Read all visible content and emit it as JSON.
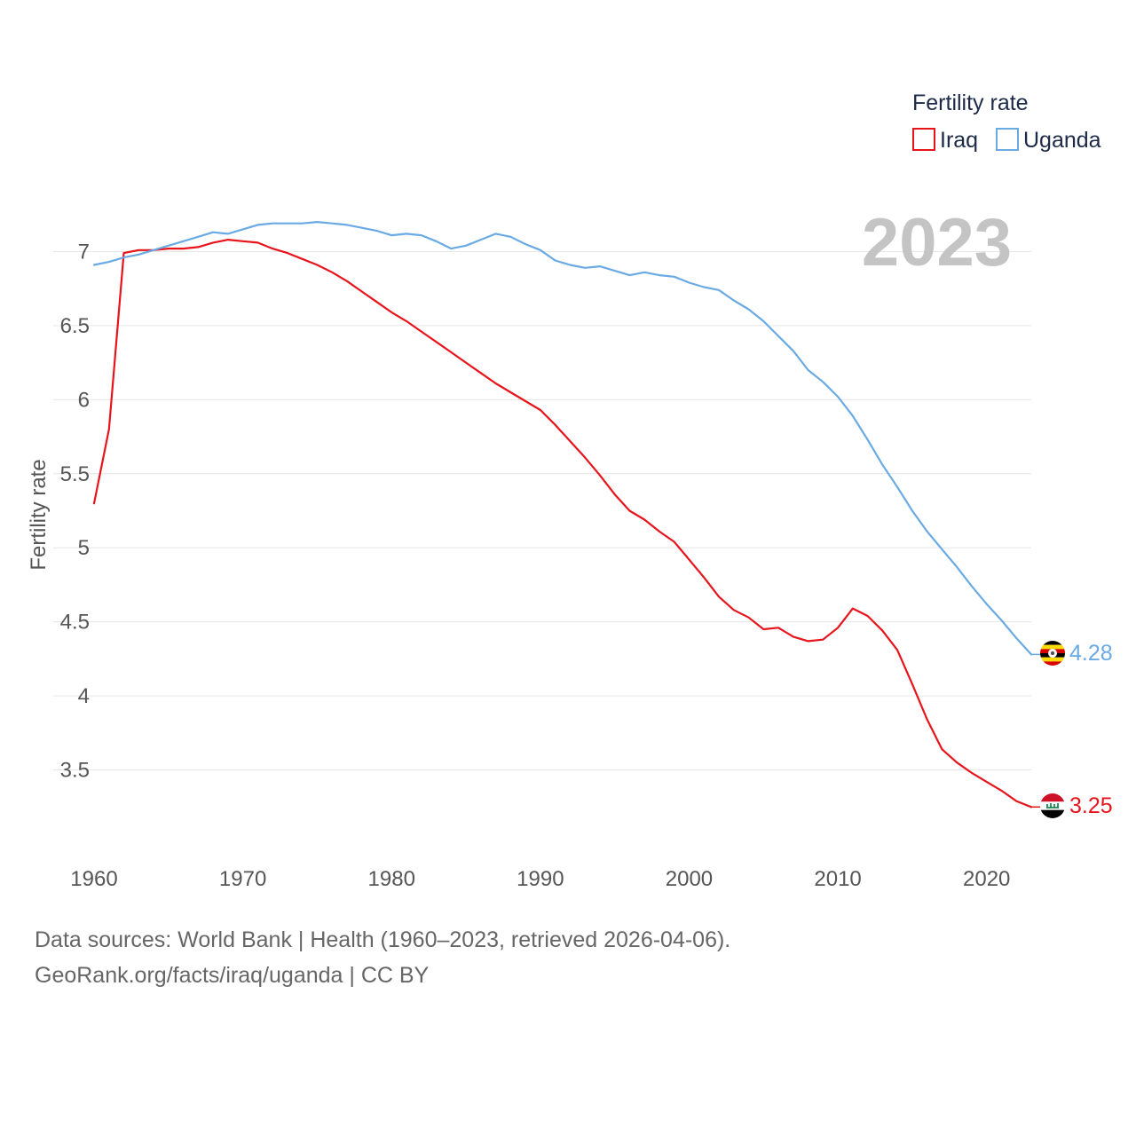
{
  "chart_data": {
    "type": "line",
    "title": "",
    "xlabel": "",
    "ylabel": "Fertility rate",
    "xlim": [
      1960,
      2023
    ],
    "ylim": [
      3.0,
      7.5
    ],
    "xticks": [
      1960,
      1970,
      1980,
      1990,
      2000,
      2010,
      2020
    ],
    "yticks": [
      3.5,
      4,
      4.5,
      5,
      5.5,
      6,
      6.5,
      7
    ],
    "ytick_labels": [
      "3.5",
      "4",
      "4.5",
      "5",
      "5.5",
      "6",
      "6.5",
      "7"
    ],
    "grid": true,
    "legend_title": "Fertility rate",
    "legend_position": "top-right",
    "year_label": "2023",
    "x": [
      1960,
      1961,
      1962,
      1963,
      1964,
      1965,
      1966,
      1967,
      1968,
      1969,
      1970,
      1971,
      1972,
      1973,
      1974,
      1975,
      1976,
      1977,
      1978,
      1979,
      1980,
      1981,
      1982,
      1983,
      1984,
      1985,
      1986,
      1987,
      1988,
      1989,
      1990,
      1991,
      1992,
      1993,
      1994,
      1995,
      1996,
      1997,
      1998,
      1999,
      2000,
      2001,
      2002,
      2003,
      2004,
      2005,
      2006,
      2007,
      2008,
      2009,
      2010,
      2011,
      2012,
      2013,
      2014,
      2015,
      2016,
      2017,
      2018,
      2019,
      2020,
      2021,
      2022,
      2023
    ],
    "series": [
      {
        "name": "Iraq",
        "color": "#e8141c",
        "end_label": "3.25",
        "values": [
          5.3,
          5.8,
          6.99,
          7.01,
          7.01,
          7.02,
          7.02,
          7.03,
          7.06,
          7.08,
          7.07,
          7.06,
          7.02,
          6.99,
          6.95,
          6.91,
          6.86,
          6.8,
          6.73,
          6.66,
          6.59,
          6.53,
          6.46,
          6.39,
          6.32,
          6.25,
          6.18,
          6.11,
          6.05,
          5.99,
          5.93,
          5.83,
          5.72,
          5.61,
          5.49,
          5.36,
          5.25,
          5.19,
          5.11,
          5.04,
          4.92,
          4.8,
          4.67,
          4.58,
          4.53,
          4.45,
          4.46,
          4.4,
          4.37,
          4.38,
          4.46,
          4.59,
          4.54,
          4.44,
          4.31,
          4.08,
          3.84,
          3.64,
          3.55,
          3.48,
          3.42,
          3.36,
          3.29,
          3.25
        ]
      },
      {
        "name": "Uganda",
        "color": "#6aaae4",
        "end_label": "4.28",
        "values": [
          6.91,
          6.93,
          6.96,
          6.98,
          7.01,
          7.04,
          7.07,
          7.1,
          7.13,
          7.12,
          7.15,
          7.18,
          7.19,
          7.19,
          7.19,
          7.2,
          7.19,
          7.18,
          7.16,
          7.14,
          7.11,
          7.12,
          7.11,
          7.07,
          7.02,
          7.04,
          7.08,
          7.12,
          7.1,
          7.05,
          7.01,
          6.94,
          6.91,
          6.89,
          6.9,
          6.87,
          6.84,
          6.86,
          6.84,
          6.83,
          6.79,
          6.76,
          6.74,
          6.67,
          6.61,
          6.53,
          6.43,
          6.33,
          6.2,
          6.12,
          6.02,
          5.89,
          5.73,
          5.56,
          5.41,
          5.25,
          5.11,
          4.99,
          4.87,
          4.74,
          4.62,
          4.51,
          4.39,
          4.28
        ]
      }
    ]
  },
  "footer": {
    "line1": "Data sources: World Bank | Health (1960–2023, retrieved 2026-04-06).",
    "line2": "GeoRank.org/facts/iraq/uganda | CC BY"
  }
}
